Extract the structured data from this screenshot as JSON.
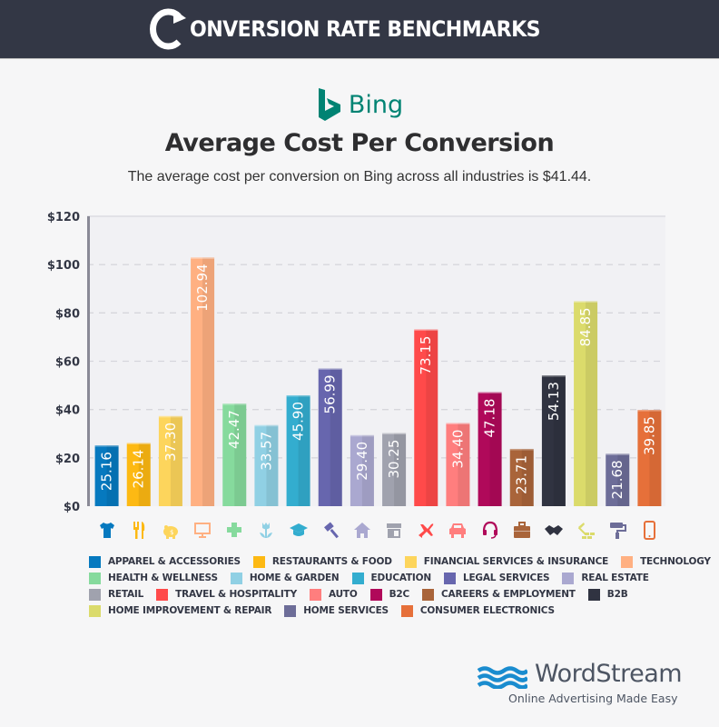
{
  "banner": {
    "title": "ONVERSION RATE BENCHMARKS",
    "logo_letter": "C"
  },
  "brand": {
    "name": "Bing",
    "color": "#008373"
  },
  "header": {
    "title": "Average Cost Per Conversion",
    "subtitle": "The average cost per conversion on Bing across all industries is $41.44."
  },
  "chart_data": {
    "type": "bar",
    "title": "Average Cost Per Conversion",
    "xlabel": "",
    "ylabel": "",
    "ylim": [
      0,
      120
    ],
    "yticks": [
      0,
      20,
      40,
      60,
      80,
      100,
      120
    ],
    "ytick_labels": [
      "$0",
      "$20",
      "$40",
      "$60",
      "$80",
      "$100",
      "$120"
    ],
    "grid": true,
    "legend_position": "bottom",
    "categories": [
      "APPAREL & ACCESSORIES",
      "RESTAURANTS & FOOD",
      "FINANCIAL SERVICES & INSURANCE",
      "TECHNOLOGY",
      "HEALTH & WELLNESS",
      "HOME & GARDEN",
      "EDUCATION",
      "LEGAL SERVICES",
      "REAL ESTATE",
      "RETAIL",
      "TRAVEL & HOSPITALITY",
      "AUTO",
      "B2C",
      "CAREERS & EMPLOYMENT",
      "B2B",
      "HOME IMPROVEMENT & REPAIR",
      "HOME SERVICES",
      "CONSUMER ELECTRONICS"
    ],
    "values": [
      25.16,
      26.14,
      37.3,
      102.94,
      42.47,
      33.57,
      45.9,
      56.99,
      29.4,
      30.25,
      73.15,
      34.4,
      47.18,
      23.71,
      54.13,
      84.85,
      21.68,
      39.85
    ],
    "value_labels": [
      "25.16",
      "26.14",
      "37.30",
      "102.94",
      "42.47",
      "33.57",
      "45.90",
      "56.99",
      "29.40",
      "30.25",
      "73.15",
      "34.40",
      "47.18",
      "23.71",
      "54.13",
      "84.85",
      "21.68",
      "39.85"
    ],
    "colors": [
      "#0679bf",
      "#fdb913",
      "#fdd55c",
      "#ffb082",
      "#86da9d",
      "#90d0e4",
      "#33adcf",
      "#6766ae",
      "#aaa8d0",
      "#a0a2ae",
      "#ff4a4a",
      "#ff7e7e",
      "#b0095a",
      "#a9643a",
      "#303341",
      "#dbdb6b",
      "#6d6d98",
      "#e6703a"
    ],
    "icons": [
      "tshirt-icon",
      "fork-knife-icon",
      "piggy-bank-icon",
      "monitor-icon",
      "medical-cross-icon",
      "flower-icon",
      "graduation-cap-icon",
      "gavel-icon",
      "house-icon",
      "storefront-icon",
      "airplane-icon",
      "car-icon",
      "headset-icon",
      "briefcase-icon",
      "handshake-icon",
      "hammer-bricks-icon",
      "paint-roller-icon",
      "smartphone-icon"
    ]
  },
  "legend_rows": [
    [
      0,
      1,
      2,
      3
    ],
    [
      4,
      5,
      6,
      7,
      8
    ],
    [
      9,
      10,
      11,
      12,
      13,
      14
    ],
    [
      15,
      16,
      17
    ]
  ],
  "footer": {
    "brand": "WordStream",
    "tagline": "Online Advertising Made Easy",
    "logo_color": "#1a8ccf"
  }
}
